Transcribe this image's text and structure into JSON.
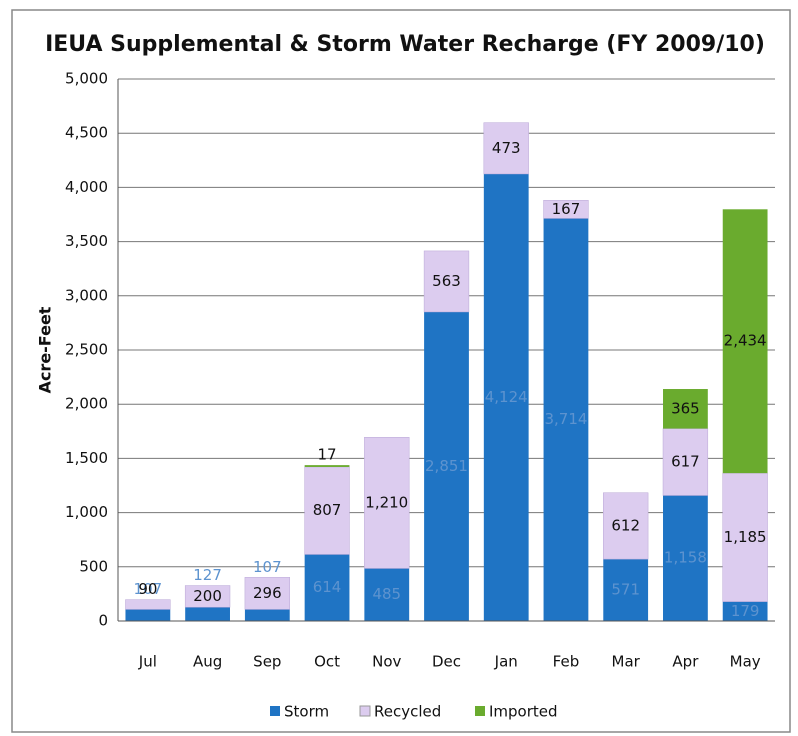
{
  "chart_data": {
    "type": "stacked_bar",
    "title": "IEUA Supplemental & Storm Water Recharge (FY 2009/10)",
    "y_label": "Acre-Feet",
    "categories": [
      "Jul",
      "Aug",
      "Sep",
      "Oct",
      "Nov",
      "Dec",
      "Jan",
      "Feb",
      "Mar",
      "Apr",
      "May"
    ],
    "series": [
      {
        "name": "Storm",
        "color": "#1f74c4",
        "values": [
          107,
          127,
          107,
          614,
          485,
          2851,
          4124,
          3714,
          571,
          1158,
          179
        ],
        "value_labels": [
          "107",
          "127",
          "107",
          "614",
          "485",
          "2,851",
          "4,124",
          "3,714",
          "571",
          "1,158",
          "179"
        ]
      },
      {
        "name": "Recycled",
        "color": "#dcccef",
        "values": [
          90,
          200,
          296,
          807,
          1210,
          563,
          473,
          167,
          612,
          617,
          1185
        ],
        "value_labels": [
          "90",
          "200",
          "296",
          "807",
          "1,210",
          "563",
          "473",
          "167",
          "612",
          "617",
          "1,185"
        ]
      },
      {
        "name": "Imported",
        "color": "#6aab2e",
        "values": [
          null,
          null,
          null,
          17,
          null,
          null,
          null,
          null,
          null,
          365,
          2434
        ],
        "value_labels": [
          null,
          null,
          null,
          "17",
          null,
          null,
          null,
          null,
          null,
          "365",
          "2,434"
        ]
      }
    ],
    "ylim": [
      0,
      5000
    ],
    "yticks": [
      0,
      500,
      {
        "value": 1000,
        "label": "1,000"
      },
      {
        "value": 1500,
        "label": "1,500"
      },
      {
        "value": 2000,
        "label": "2,000"
      },
      {
        "value": 2500,
        "label": "2,500"
      },
      {
        "value": 3000,
        "label": "3,000"
      },
      {
        "value": 3500,
        "label": "3,500"
      },
      {
        "value": 4000,
        "label": "4,000"
      },
      {
        "value": 4500,
        "label": "4,500"
      },
      {
        "value": 5000,
        "label": "5,000"
      }
    ],
    "grid": true,
    "legend": "bottom"
  }
}
